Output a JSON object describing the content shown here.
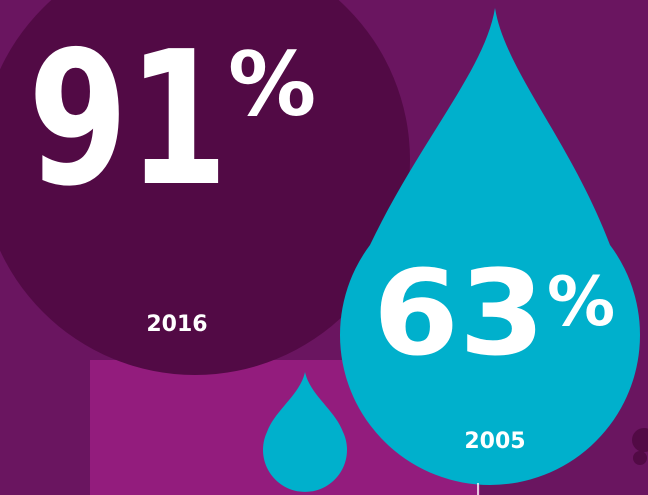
{
  "stats": [
    {
      "number": "91",
      "unit": "%",
      "year": "2016"
    },
    {
      "number": "63",
      "unit": "%",
      "year": "2005"
    }
  ]
}
